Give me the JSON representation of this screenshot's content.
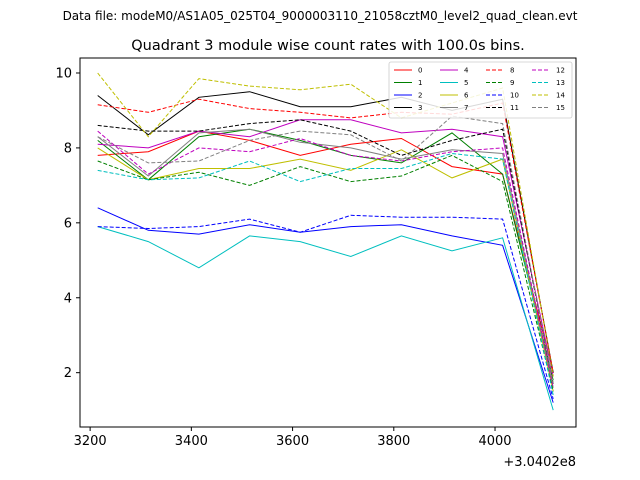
{
  "suptitle": "Data file: modeM0/AS1A05_025T04_9000003110_21058cztM0_level2_quad_clean.evt",
  "chart_data": {
    "type": "line",
    "title": "Quadrant 3 module wise count rates with 100.0s bins.",
    "xlabel": "",
    "ylabel": "",
    "x_offset_label": "+3.0402e8",
    "xlim": [
      3180,
      4160
    ],
    "ylim": [
      0.55,
      10.4
    ],
    "xticks": [
      "3200",
      "3400",
      "3600",
      "3800",
      "4000"
    ],
    "yticks": [
      "2",
      "4",
      "6",
      "8",
      "10"
    ],
    "x": [
      3215,
      3315,
      3415,
      3515,
      3615,
      3715,
      3815,
      3915,
      4015,
      4115
    ],
    "legend_loc": "upper right",
    "grid": false,
    "series": [
      {
        "name": "0",
        "color": "#ff0000",
        "dash": false,
        "values": [
          7.8,
          7.9,
          8.45,
          8.2,
          7.8,
          8.1,
          8.25,
          7.5,
          7.3,
          2.0
        ]
      },
      {
        "name": "1",
        "color": "#008000",
        "dash": false,
        "values": [
          8.2,
          7.15,
          8.3,
          8.5,
          8.2,
          7.8,
          7.6,
          8.4,
          7.3,
          1.8
        ]
      },
      {
        "name": "2",
        "color": "#0000ff",
        "dash": false,
        "values": [
          6.4,
          5.8,
          5.7,
          5.95,
          5.75,
          5.9,
          5.95,
          5.65,
          5.4,
          1.2
        ]
      },
      {
        "name": "3",
        "color": "#000000",
        "dash": false,
        "values": [
          9.4,
          8.35,
          9.35,
          9.5,
          9.1,
          9.1,
          9.35,
          9.0,
          9.3,
          2.0
        ]
      },
      {
        "name": "4",
        "color": "#bf00bf",
        "dash": false,
        "values": [
          8.1,
          8.0,
          8.45,
          8.3,
          8.75,
          8.75,
          8.4,
          8.5,
          8.3,
          1.9
        ]
      },
      {
        "name": "5",
        "color": "#00bfbf",
        "dash": false,
        "values": [
          5.9,
          5.5,
          4.8,
          5.65,
          5.5,
          5.1,
          5.65,
          5.25,
          5.6,
          1.0
        ]
      },
      {
        "name": "6",
        "color": "#bfbf00",
        "dash": false,
        "values": [
          8.0,
          7.15,
          7.45,
          7.45,
          7.7,
          7.4,
          7.95,
          7.2,
          7.7,
          1.5
        ]
      },
      {
        "name": "7",
        "color": "#808080",
        "dash": false,
        "values": [
          8.3,
          7.25,
          8.4,
          8.5,
          8.15,
          8.0,
          7.7,
          7.95,
          7.85,
          1.6
        ]
      },
      {
        "name": "8",
        "color": "#ff0000",
        "dash": true,
        "values": [
          9.15,
          8.95,
          9.3,
          9.05,
          8.95,
          8.8,
          8.95,
          8.9,
          9.2,
          2.0
        ]
      },
      {
        "name": "9",
        "color": "#008000",
        "dash": true,
        "values": [
          7.65,
          7.15,
          7.35,
          7.0,
          7.5,
          7.1,
          7.25,
          7.8,
          7.1,
          1.5
        ]
      },
      {
        "name": "10",
        "color": "#0000ff",
        "dash": true,
        "values": [
          5.9,
          5.85,
          5.9,
          6.1,
          5.75,
          6.2,
          6.15,
          6.15,
          6.1,
          1.3
        ]
      },
      {
        "name": "11",
        "color": "#000000",
        "dash": true,
        "values": [
          8.6,
          8.45,
          8.45,
          8.65,
          8.75,
          8.45,
          7.8,
          8.2,
          8.5,
          1.7
        ]
      },
      {
        "name": "12",
        "color": "#bf00bf",
        "dash": true,
        "values": [
          8.45,
          7.3,
          8.0,
          7.9,
          8.25,
          7.8,
          7.65,
          7.9,
          8.0,
          1.6
        ]
      },
      {
        "name": "13",
        "color": "#00bfbf",
        "dash": true,
        "values": [
          7.4,
          7.15,
          7.2,
          7.65,
          7.1,
          7.45,
          7.45,
          7.85,
          7.7,
          1.4
        ]
      },
      {
        "name": "14",
        "color": "#bfbf00",
        "dash": true,
        "values": [
          10.0,
          8.3,
          9.85,
          9.65,
          9.55,
          9.7,
          8.8,
          9.2,
          9.6,
          1.9
        ]
      },
      {
        "name": "15",
        "color": "#808080",
        "dash": true,
        "values": [
          8.3,
          7.6,
          7.65,
          8.2,
          8.45,
          8.35,
          7.65,
          8.85,
          8.65,
          1.7
        ]
      }
    ]
  }
}
